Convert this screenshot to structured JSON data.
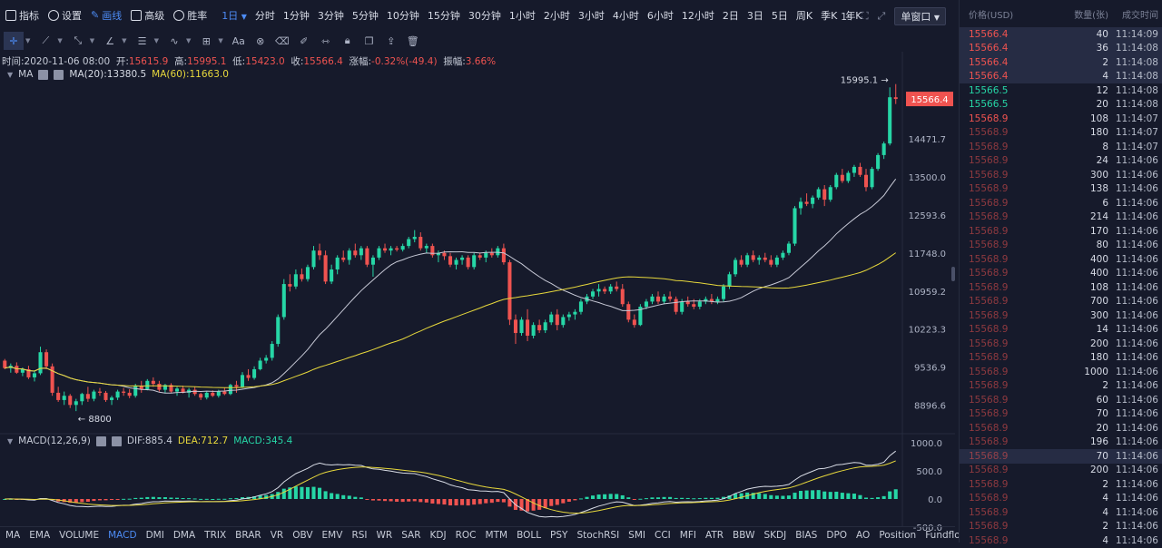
{
  "toolbar": {
    "indicators": "指标",
    "settings": "设置",
    "drawing": "画线",
    "advanced": "高级",
    "winrate": "胜率",
    "timeframe_selected": "1日",
    "intervals": [
      "分时",
      "1分钟",
      "3分钟",
      "5分钟",
      "10分钟",
      "15分钟",
      "30分钟",
      "1小时",
      "2小时",
      "3小时",
      "4小时",
      "6小时",
      "12小时",
      "2日",
      "3日",
      "5日",
      "周K",
      "季K",
      "年K"
    ],
    "speed": "1s",
    "window_mode": "单窗口"
  },
  "info": {
    "time_label": "时间:",
    "time": "2020-11-06 08:00",
    "open_label": "开:",
    "open": "15615.9",
    "high_label": "高:",
    "high": "15995.1",
    "low_label": "低:",
    "low": "15423.0",
    "close_label": "收:",
    "close": "15566.4",
    "change_label": "涨幅:",
    "change": "-0.32%(-49.4)",
    "amp_label": "振幅:",
    "amp": "3.66%"
  },
  "ma_legend": {
    "name": "MA",
    "ma20": "MA(20):13380.5",
    "ma60": "MA(60):11663.0"
  },
  "macd_legend": {
    "name": "MACD(12,26,9)",
    "dif": "DIF:885.4",
    "dea": "DEA:712.7",
    "macd": "MACD:345.4"
  },
  "chart_data": {
    "type": "candlestick",
    "price_axis_ticks": [
      "14471.7",
      "13500.0",
      "12593.6",
      "11748.0",
      "10959.2",
      "10223.3",
      "9536.9",
      "8896.6"
    ],
    "last_price_label": "15566.4",
    "high_marker": "15995.1",
    "low_marker": "8800",
    "macd_axis_ticks": [
      "1000.0",
      "500.0",
      "0.0",
      "-500.0"
    ],
    "candles": [
      [
        9650,
        9680,
        9500,
        9520
      ],
      [
        9520,
        9600,
        9440,
        9560
      ],
      [
        9560,
        9620,
        9420,
        9440
      ],
      [
        9440,
        9530,
        9380,
        9500
      ],
      [
        9500,
        9560,
        9330,
        9360
      ],
      [
        9360,
        9480,
        9290,
        9430
      ],
      [
        9430,
        9900,
        9400,
        9800
      ],
      [
        9800,
        9850,
        9500,
        9550
      ],
      [
        9550,
        9600,
        9050,
        9100
      ],
      [
        9100,
        9200,
        8950,
        8980
      ],
      [
        8980,
        9120,
        8900,
        9050
      ],
      [
        9050,
        9080,
        8850,
        8900
      ],
      [
        8900,
        9000,
        8800,
        8960
      ],
      [
        8960,
        9100,
        8900,
        9080
      ],
      [
        9080,
        9200,
        8950,
        9000
      ],
      [
        9000,
        9150,
        8960,
        9120
      ],
      [
        9120,
        9180,
        9050,
        9100
      ],
      [
        9100,
        9130,
        8950,
        8980
      ],
      [
        8980,
        9050,
        8900,
        9020
      ],
      [
        9020,
        9150,
        8980,
        9120
      ],
      [
        9120,
        9180,
        9050,
        9100
      ],
      [
        9100,
        9160,
        9010,
        9050
      ],
      [
        9050,
        9250,
        9020,
        9220
      ],
      [
        9220,
        9300,
        9100,
        9160
      ],
      [
        9160,
        9330,
        9140,
        9300
      ],
      [
        9300,
        9360,
        9200,
        9250
      ],
      [
        9250,
        9300,
        9120,
        9150
      ],
      [
        9150,
        9250,
        9100,
        9230
      ],
      [
        9230,
        9260,
        9100,
        9120
      ],
      [
        9120,
        9200,
        9050,
        9170
      ],
      [
        9170,
        9220,
        9090,
        9100
      ],
      [
        9100,
        9180,
        9020,
        9150
      ],
      [
        9150,
        9200,
        9050,
        9080
      ],
      [
        9080,
        9100,
        8980,
        9020
      ],
      [
        9020,
        9120,
        8990,
        9100
      ],
      [
        9100,
        9140,
        9030,
        9050
      ],
      [
        9050,
        9150,
        9020,
        9120
      ],
      [
        9120,
        9180,
        9060,
        9080
      ],
      [
        9080,
        9250,
        9060,
        9230
      ],
      [
        9230,
        9300,
        9100,
        9200
      ],
      [
        9200,
        9450,
        9180,
        9400
      ],
      [
        9400,
        9500,
        9300,
        9350
      ],
      [
        9350,
        9550,
        9320,
        9500
      ],
      [
        9500,
        9700,
        9480,
        9650
      ],
      [
        9650,
        9750,
        9600,
        9700
      ],
      [
        9700,
        10000,
        9650,
        9950
      ],
      [
        9950,
        10500,
        9900,
        10450
      ],
      [
        10450,
        11200,
        10400,
        11100
      ],
      [
        11100,
        11300,
        10950,
        11050
      ],
      [
        11050,
        11400,
        11000,
        11300
      ],
      [
        11300,
        11420,
        11150,
        11200
      ],
      [
        11200,
        11500,
        11150,
        11450
      ],
      [
        11450,
        11900,
        11400,
        11800
      ],
      [
        11800,
        11950,
        11600,
        11700
      ],
      [
        11700,
        11800,
        11100,
        11150
      ],
      [
        11150,
        11500,
        11100,
        11400
      ],
      [
        11400,
        11700,
        11300,
        11650
      ],
      [
        11650,
        11800,
        11550,
        11600
      ],
      [
        11600,
        11850,
        11500,
        11800
      ],
      [
        11800,
        11950,
        11650,
        11700
      ],
      [
        11700,
        11900,
        11600,
        11850
      ],
      [
        11850,
        11900,
        11450,
        11500
      ],
      [
        11500,
        11700,
        11250,
        11650
      ],
      [
        11650,
        11900,
        11600,
        11850
      ],
      [
        11850,
        11950,
        11750,
        11800
      ],
      [
        11800,
        11900,
        11700,
        11850
      ],
      [
        11850,
        11900,
        11780,
        11820
      ],
      [
        11820,
        11950,
        11780,
        11900
      ],
      [
        11900,
        12100,
        11850,
        12050
      ],
      [
        12050,
        12250,
        11980,
        12100
      ],
      [
        12100,
        12200,
        11800,
        11850
      ],
      [
        11850,
        11950,
        11750,
        11900
      ],
      [
        11900,
        11950,
        11650,
        11700
      ],
      [
        11700,
        11800,
        11550,
        11750
      ],
      [
        11750,
        11800,
        11600,
        11680
      ],
      [
        11680,
        11750,
        11450,
        11500
      ],
      [
        11500,
        11650,
        11400,
        11600
      ],
      [
        11600,
        11700,
        11500,
        11650
      ],
      [
        11650,
        11700,
        11400,
        11450
      ],
      [
        11450,
        11750,
        11400,
        11700
      ],
      [
        11700,
        11750,
        11600,
        11650
      ],
      [
        11650,
        11800,
        11550,
        11750
      ],
      [
        11750,
        11850,
        11650,
        11700
      ],
      [
        11700,
        11900,
        11650,
        11850
      ],
      [
        11850,
        11950,
        11500,
        11550
      ],
      [
        11550,
        11600,
        10300,
        10400
      ],
      [
        10400,
        10500,
        9950,
        10150
      ],
      [
        10150,
        10450,
        10100,
        10400
      ],
      [
        10400,
        10600,
        10000,
        10100
      ],
      [
        10100,
        10350,
        10050,
        10300
      ],
      [
        10300,
        10400,
        10150,
        10200
      ],
      [
        10200,
        10400,
        10150,
        10350
      ],
      [
        10350,
        10550,
        10300,
        10500
      ],
      [
        10500,
        10600,
        10200,
        10300
      ],
      [
        10300,
        10500,
        10250,
        10450
      ],
      [
        10450,
        10550,
        10380,
        10500
      ],
      [
        10500,
        10600,
        10400,
        10550
      ],
      [
        10550,
        10800,
        10500,
        10750
      ],
      [
        10750,
        10900,
        10700,
        10850
      ],
      [
        10850,
        11000,
        10800,
        10950
      ],
      [
        10950,
        11100,
        10850,
        11000
      ],
      [
        11000,
        11050,
        10900,
        10950
      ],
      [
        10950,
        11100,
        10900,
        11050
      ],
      [
        11050,
        11150,
        10950,
        11000
      ],
      [
        11000,
        11100,
        10650,
        10700
      ],
      [
        10700,
        10750,
        10350,
        10400
      ],
      [
        10400,
        10500,
        10250,
        10300
      ],
      [
        10300,
        10700,
        10280,
        10650
      ],
      [
        10650,
        10800,
        10600,
        10750
      ],
      [
        10750,
        10900,
        10700,
        10850
      ],
      [
        10850,
        10950,
        10700,
        10750
      ],
      [
        10750,
        10900,
        10700,
        10850
      ],
      [
        10850,
        10950,
        10750,
        10800
      ],
      [
        10800,
        10850,
        10500,
        10550
      ],
      [
        10550,
        10800,
        10500,
        10750
      ],
      [
        10750,
        10850,
        10650,
        10700
      ],
      [
        10700,
        10800,
        10600,
        10650
      ],
      [
        10650,
        10800,
        10600,
        10750
      ],
      [
        10750,
        10850,
        10700,
        10800
      ],
      [
        10800,
        10900,
        10700,
        10750
      ],
      [
        10750,
        10850,
        10700,
        10800
      ],
      [
        10800,
        11100,
        10750,
        11050
      ],
      [
        11050,
        11350,
        11000,
        11300
      ],
      [
        11300,
        11650,
        11250,
        11600
      ],
      [
        11600,
        11700,
        11450,
        11500
      ],
      [
        11500,
        11750,
        11450,
        11700
      ],
      [
        11700,
        11800,
        11550,
        11600
      ],
      [
        11600,
        11700,
        11500,
        11650
      ],
      [
        11650,
        11750,
        11550,
        11600
      ],
      [
        11600,
        11700,
        11450,
        11500
      ],
      [
        11500,
        11700,
        11450,
        11650
      ],
      [
        11650,
        11800,
        11600,
        11750
      ],
      [
        11750,
        12000,
        11700,
        11950
      ],
      [
        11950,
        12800,
        11900,
        12750
      ],
      [
        12750,
        13000,
        12600,
        12900
      ],
      [
        12900,
        13100,
        12800,
        12850
      ],
      [
        12850,
        13050,
        12750,
        13000
      ],
      [
        13000,
        13250,
        12950,
        13200
      ],
      [
        13200,
        13300,
        12800,
        12950
      ],
      [
        12950,
        13300,
        12900,
        13250
      ],
      [
        13250,
        13600,
        13200,
        13550
      ],
      [
        13550,
        13700,
        13350,
        13400
      ],
      [
        13400,
        13650,
        13350,
        13600
      ],
      [
        13600,
        13800,
        13500,
        13750
      ],
      [
        13750,
        13850,
        13500,
        13550
      ],
      [
        13550,
        13700,
        13150,
        13250
      ],
      [
        13250,
        13750,
        13200,
        13700
      ],
      [
        13700,
        14100,
        13650,
        14050
      ],
      [
        14050,
        14400,
        13950,
        14350
      ],
      [
        14350,
        15900,
        14300,
        15615
      ],
      [
        15615,
        15995,
        15423,
        15566
      ]
    ]
  },
  "order_book": {
    "headers": [
      "价格(USD)",
      "数量(张)",
      "成交时间"
    ],
    "rows": [
      [
        "15566.4",
        "40",
        "11:14:09"
      ],
      [
        "15566.4",
        "36",
        "11:14:08"
      ],
      [
        "15566.4",
        "2",
        "11:14:08"
      ],
      [
        "15566.4",
        "4",
        "11:14:08"
      ],
      [
        "15566.5",
        "12",
        "11:14:08"
      ],
      [
        "15566.5",
        "20",
        "11:14:08"
      ],
      [
        "15568.9",
        "108",
        "11:14:07"
      ],
      [
        "15568.9",
        "180",
        "11:14:07"
      ],
      [
        "15568.9",
        "8",
        "11:14:07"
      ],
      [
        "15568.9",
        "24",
        "11:14:06"
      ],
      [
        "15568.9",
        "300",
        "11:14:06"
      ],
      [
        "15568.9",
        "138",
        "11:14:06"
      ],
      [
        "15568.9",
        "6",
        "11:14:06"
      ],
      [
        "15568.9",
        "214",
        "11:14:06"
      ],
      [
        "15568.9",
        "170",
        "11:14:06"
      ],
      [
        "15568.9",
        "80",
        "11:14:06"
      ],
      [
        "15568.9",
        "400",
        "11:14:06"
      ],
      [
        "15568.9",
        "400",
        "11:14:06"
      ],
      [
        "15568.9",
        "108",
        "11:14:06"
      ],
      [
        "15568.9",
        "700",
        "11:14:06"
      ],
      [
        "15568.9",
        "300",
        "11:14:06"
      ],
      [
        "15568.9",
        "14",
        "11:14:06"
      ],
      [
        "15568.9",
        "200",
        "11:14:06"
      ],
      [
        "15568.9",
        "180",
        "11:14:06"
      ],
      [
        "15568.9",
        "1000",
        "11:14:06"
      ],
      [
        "15568.9",
        "2",
        "11:14:06"
      ],
      [
        "15568.9",
        "60",
        "11:14:06"
      ],
      [
        "15568.9",
        "70",
        "11:14:06"
      ],
      [
        "15568.9",
        "20",
        "11:14:06"
      ],
      [
        "15568.9",
        "196",
        "11:14:06"
      ],
      [
        "15568.9",
        "70",
        "11:14:06"
      ],
      [
        "15568.9",
        "200",
        "11:14:06"
      ],
      [
        "15568.9",
        "2",
        "11:14:06"
      ],
      [
        "15568.9",
        "4",
        "11:14:06"
      ],
      [
        "15568.9",
        "4",
        "11:14:06"
      ],
      [
        "15568.9",
        "2",
        "11:14:06"
      ],
      [
        "15568.9",
        "4",
        "11:14:06"
      ]
    ],
    "row_colors": [
      "#ef5350",
      "#ef5350",
      "#ef5350",
      "#ef5350",
      "#26d6a6",
      "#26d6a6",
      "#ef5350",
      "#ef5350",
      "#ef5350",
      "#ef5350",
      "#ef5350",
      "#ef5350",
      "#ef5350",
      "#ef5350",
      "#ef5350",
      "#ef5350",
      "#ef5350",
      "#ef5350",
      "#ef5350",
      "#ef5350",
      "#ef5350",
      "#ef5350",
      "#ef5350",
      "#ef5350",
      "#ef5350",
      "#ef5350",
      "#ef5350",
      "#ef5350",
      "#ef5350",
      "#ef5350",
      "#ef5350",
      "#ef5350",
      "#ef5350",
      "#ef5350",
      "#ef5350",
      "#ef5350",
      "#ef5350"
    ]
  },
  "indicator_tabs": [
    "MA",
    "EMA",
    "VOLUME",
    "MACD",
    "DMI",
    "DMA",
    "TRIX",
    "BRAR",
    "VR",
    "OBV",
    "EMV",
    "RSI",
    "WR",
    "SAR",
    "KDJ",
    "ROC",
    "MTM",
    "BOLL",
    "PSY",
    "StochRSI",
    "SMI",
    "CCI",
    "MFI",
    "ATR",
    "BBW",
    "SKDJ",
    "BIAS",
    "DPO",
    "AO",
    "Position",
    "Fundflow"
  ],
  "indicator_selected": "MACD",
  "colors": {
    "up": "#26d6a6",
    "down": "#ef5350",
    "accent": "#4d8cf5",
    "ma20": "#c7c9d6",
    "ma60": "#e7d83c"
  }
}
